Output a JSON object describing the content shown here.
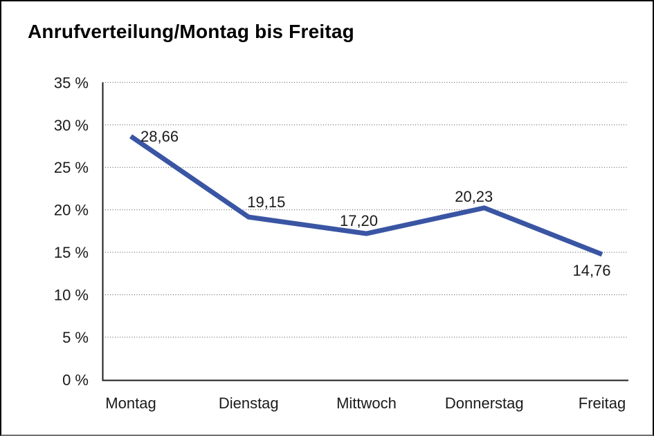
{
  "figure": {
    "background": "#FFFFFF",
    "border_color": "#000000"
  },
  "chart_data": {
    "type": "line",
    "title": "Anrufverteilung/Montag bis Freitag",
    "categories": [
      "Montag",
      "Dienstag",
      "Mittwoch",
      "Donnerstag",
      "Freitag"
    ],
    "series": [
      {
        "name": "Anrufverteilung",
        "values": [
          28.66,
          19.15,
          17.2,
          20.23,
          14.76
        ]
      }
    ],
    "point_labels": [
      "28,66",
      "19,15",
      "17,20",
      "20,23",
      "14,76"
    ],
    "y_ticks": [
      "0 %",
      "5 %",
      "10 %",
      "15 %",
      "20 %",
      "25 %",
      "30 %",
      "35 %"
    ],
    "ylim": [
      0,
      35
    ],
    "y_tick_step": 5,
    "xlabel": "",
    "ylabel": "",
    "grid": "horizontal-dotted",
    "legend": "none",
    "line_color": "#3A55A3",
    "axis_color": "#1c1c1c",
    "gridline_color": "#4a4a4a",
    "text_color": "#1a1a1a"
  }
}
